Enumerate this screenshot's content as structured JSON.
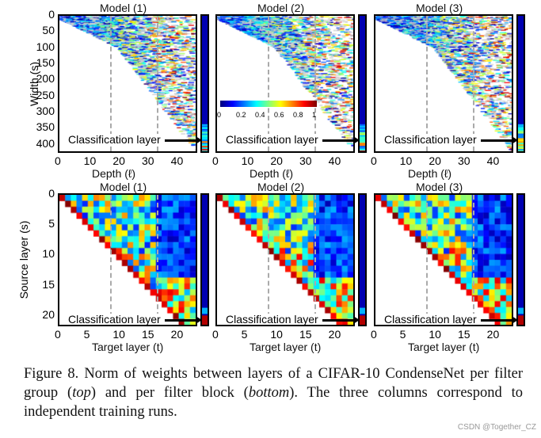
{
  "figure": {
    "models": [
      "Model (1)",
      "Model (2)",
      "Model (3)"
    ],
    "top": {
      "xlabel": "Depth (ℓ)",
      "ylabel": "Width (s)",
      "xticks": [
        "0",
        "10",
        "20",
        "30",
        "40"
      ],
      "yticks": [
        "0",
        "50",
        "100",
        "150",
        "200",
        "250",
        "300",
        "350",
        "400"
      ],
      "xlim": [
        0,
        48
      ],
      "ylim": [
        0,
        430
      ],
      "dashed_x": [
        18,
        34
      ],
      "annotation": "Classification layer"
    },
    "bottom": {
      "xlabel": "Target layer (t)",
      "ylabel": "Source layer (s)",
      "xticks": [
        "0",
        "5",
        "10",
        "15",
        "20"
      ],
      "yticks": [
        "0",
        "5",
        "10",
        "15",
        "20"
      ],
      "xlim": [
        0,
        24
      ],
      "ylim": [
        0,
        22
      ],
      "dashed_x": [
        9,
        17
      ],
      "annotation": "Classification layer"
    },
    "colorbar": {
      "colormap": "jet",
      "range": [
        0,
        1
      ],
      "ticks": [
        "0",
        "0.2",
        "0.4",
        "0.6",
        "0.8",
        "1"
      ]
    }
  },
  "caption": {
    "p1": "Figure 8. Norm of weights between layers of a CIFAR-10 CondenseNet per filter group (",
    "top": "top",
    "p2": ") and per filter block (",
    "bottom": "bottom",
    "p3": "). The three columns correspond to independent training runs."
  },
  "watermark": "CSDN @Together_CZ"
}
